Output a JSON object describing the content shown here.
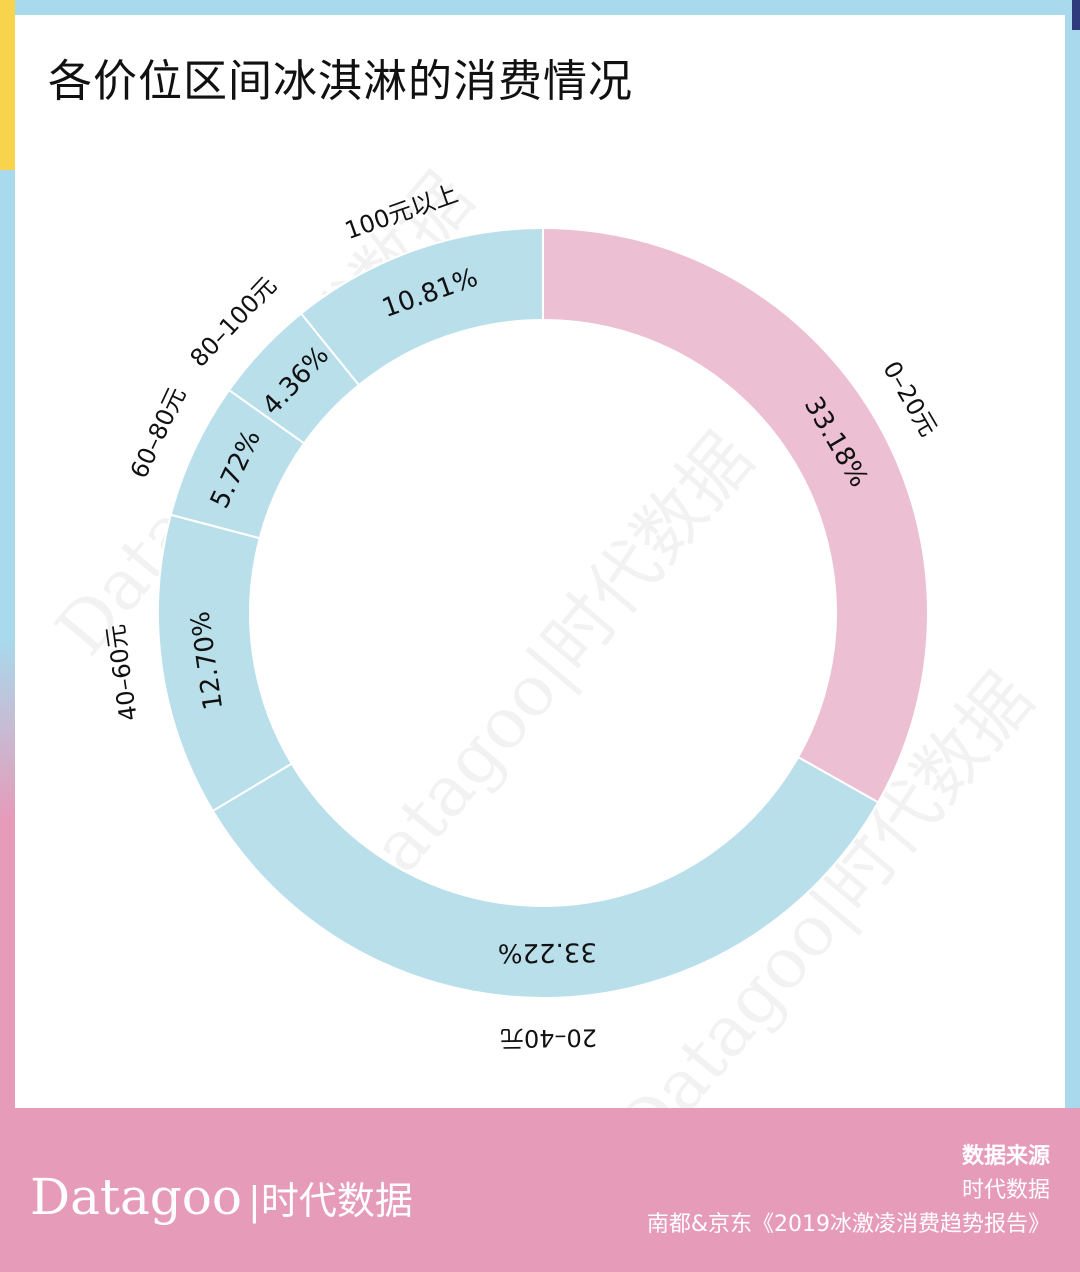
{
  "title": "各价位区间冰淇淋的消费情况",
  "watermark": "Datagoo|时代数据",
  "chart_data": {
    "type": "pie",
    "donut": true,
    "title": "各价位区间冰淇淋的消费情况",
    "start": "top, clockwise",
    "categories": [
      "0–20元",
      "20–40元",
      "40–60元",
      "60–80元",
      "80–100元",
      "100元以上"
    ],
    "values": [
      33.18,
      33.22,
      12.7,
      5.72,
      4.36,
      10.81
    ],
    "value_labels": [
      "33.18%",
      "33.22%",
      "12.70%",
      "5.72%",
      "4.36%",
      "10.81%"
    ],
    "colors": [
      "#ecc0d2",
      "#b9dfeb",
      "#b9dfeb",
      "#b9dfeb",
      "#b9dfeb",
      "#b9dfeb"
    ]
  },
  "footer": {
    "logo_en": "Datagoo",
    "logo_cn": "|时代数据",
    "source_heading": "数据来源",
    "source_lines": [
      "时代数据",
      "南都&京东《2019冰激凌消费趋势报告》"
    ]
  }
}
